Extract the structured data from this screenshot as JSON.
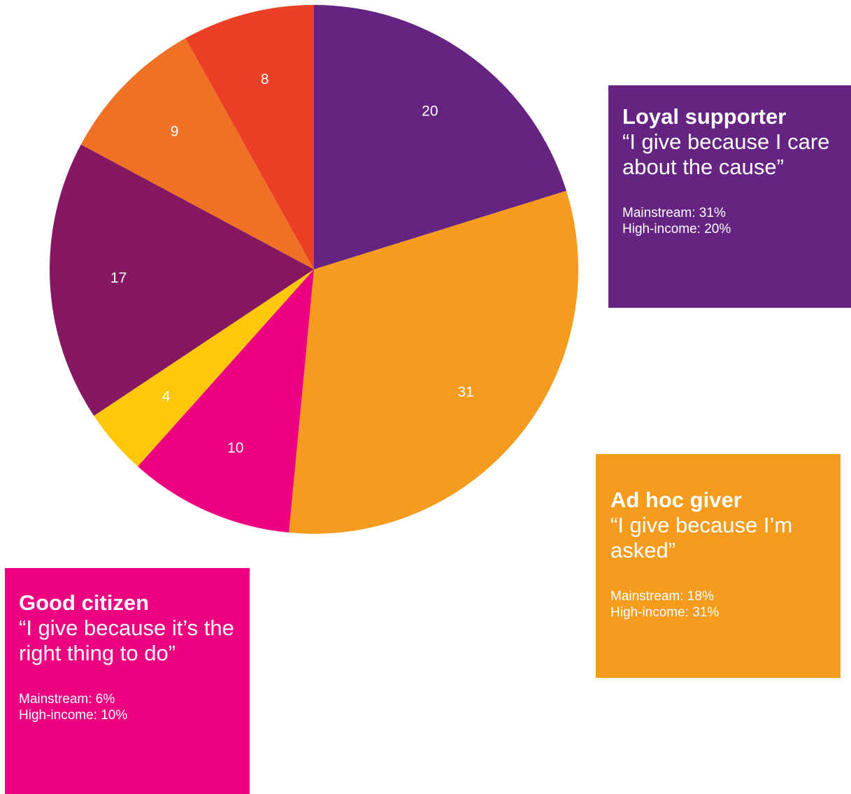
{
  "chart_data": {
    "type": "pie",
    "start_angle_deg": 0,
    "direction": "clockwise",
    "slices": [
      {
        "label": "20",
        "value": 20,
        "color": "#662482"
      },
      {
        "label": "31",
        "value": 31,
        "color": "#F59C1E"
      },
      {
        "label": "10",
        "value": 10,
        "color": "#EC0080"
      },
      {
        "label": "4",
        "value": 4,
        "color": "#FFC709"
      },
      {
        "label": "17",
        "value": 17,
        "color": "#861862"
      },
      {
        "label": "9",
        "value": 9,
        "color": "#EF7125"
      },
      {
        "label": "8",
        "value": 8,
        "color": "#EB4024"
      }
    ]
  },
  "callouts": {
    "loyal": {
      "title": "Loyal supporter",
      "quote": "“I give because I care about the cause”",
      "mainstream": "Mainstream: 31%",
      "high_income": "High-income: 20%",
      "color": "#662482"
    },
    "adhoc": {
      "title": "Ad hoc giver",
      "quote": "“I give because I’m asked”",
      "mainstream": "Mainstream: 18%",
      "high_income": "High-income: 31%",
      "color": "#F59C1E"
    },
    "good": {
      "title": "Good citizen",
      "quote": "“I give because it’s the right thing to do”",
      "mainstream": "Mainstream: 6%",
      "high_income": "High-income: 10%",
      "color": "#EC0080"
    }
  }
}
